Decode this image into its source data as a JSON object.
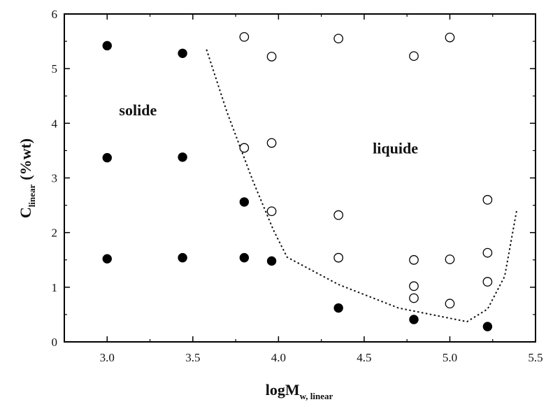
{
  "chart_data": {
    "type": "scatter",
    "title": "",
    "xlabel": {
      "main": "logM",
      "sub": "w, linear"
    },
    "ylabel": {
      "main": "C",
      "sub": "linear",
      "unit": "(%wt)"
    },
    "xlim": [
      2.75,
      5.5
    ],
    "ylim": [
      0,
      6
    ],
    "xticks": [
      "3.0",
      "3.5",
      "4.0",
      "4.5",
      "5.0",
      "5.5"
    ],
    "xtick_values": [
      3.0,
      3.5,
      4.0,
      4.5,
      5.0,
      5.5
    ],
    "yticks": [
      "0",
      "1",
      "2",
      "3",
      "4",
      "5",
      "6"
    ],
    "ytick_values": [
      0,
      1,
      2,
      3,
      4,
      5,
      6
    ],
    "grid": false,
    "legend": "none",
    "series": [
      {
        "marker": "filled-circle",
        "color": "#000000",
        "x": [
          3.0,
          3.0,
          3.0,
          3.44,
          3.44,
          3.44,
          3.8,
          3.8,
          3.96,
          4.35,
          4.79,
          5.22
        ],
        "y": [
          5.42,
          3.37,
          1.52,
          5.28,
          3.38,
          1.54,
          2.56,
          1.54,
          1.48,
          0.62,
          0.41,
          0.28
        ]
      },
      {
        "marker": "open-circle",
        "color": "#000000",
        "x": [
          3.8,
          3.96,
          4.35,
          4.79,
          5.0,
          3.8,
          3.96,
          3.96,
          4.35,
          4.35,
          4.79,
          4.79,
          4.79,
          5.0,
          5.0,
          5.22,
          5.22,
          5.22
        ],
        "y": [
          5.58,
          5.22,
          5.55,
          5.23,
          5.57,
          3.55,
          3.64,
          2.39,
          2.32,
          1.54,
          1.5,
          1.02,
          0.8,
          1.51,
          0.7,
          2.6,
          1.63,
          1.1
        ]
      }
    ],
    "boundary": {
      "style": "dotted",
      "x": [
        3.58,
        3.7,
        3.85,
        3.97,
        4.05,
        4.35,
        4.7,
        5.1,
        5.22,
        5.32,
        5.39
      ],
      "y": [
        5.35,
        4.2,
        2.95,
        2.05,
        1.55,
        1.05,
        0.62,
        0.37,
        0.6,
        1.2,
        2.4
      ]
    },
    "annotations": [
      {
        "text": "solide",
        "x": 3.07,
        "y": 4.25
      },
      {
        "text": "liquide",
        "x": 4.55,
        "y": 3.55
      }
    ]
  }
}
